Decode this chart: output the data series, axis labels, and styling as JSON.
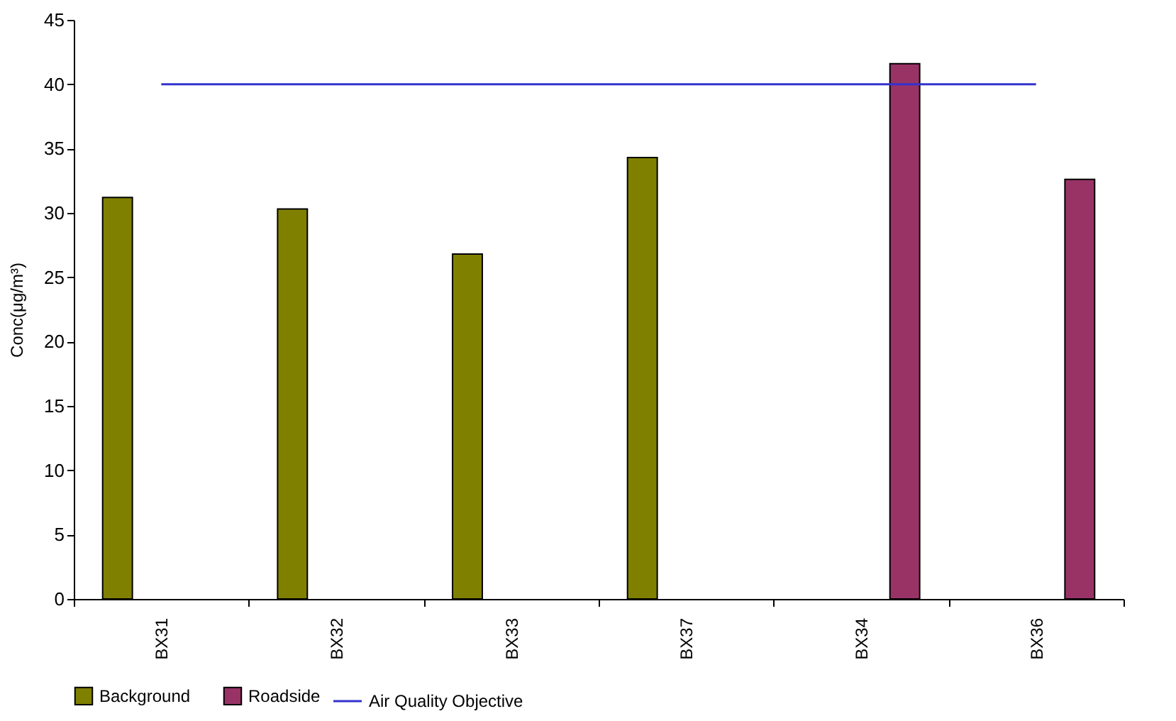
{
  "chart_data": {
    "type": "bar",
    "ylabel": "Conc(μg/m³)",
    "categories": [
      "BX31",
      "BX32",
      "BX33",
      "BX37",
      "BX34",
      "BX36"
    ],
    "series": [
      {
        "name": "Background",
        "color": "#808000",
        "values": [
          31.2,
          30.3,
          26.8,
          34.3,
          null,
          null
        ]
      },
      {
        "name": "Roadside",
        "color": "#993366",
        "values": [
          null,
          null,
          null,
          null,
          41.6,
          32.6
        ]
      },
      {
        "name": "Air Quality Objective",
        "type": "line",
        "color": "#3333cc",
        "values": [
          40,
          40,
          40,
          40,
          40,
          40
        ]
      }
    ],
    "ylim": [
      0,
      45
    ],
    "yticks": [
      0,
      5,
      10,
      15,
      20,
      25,
      30,
      35,
      40,
      45
    ],
    "grid": false,
    "legend": "bottom"
  }
}
